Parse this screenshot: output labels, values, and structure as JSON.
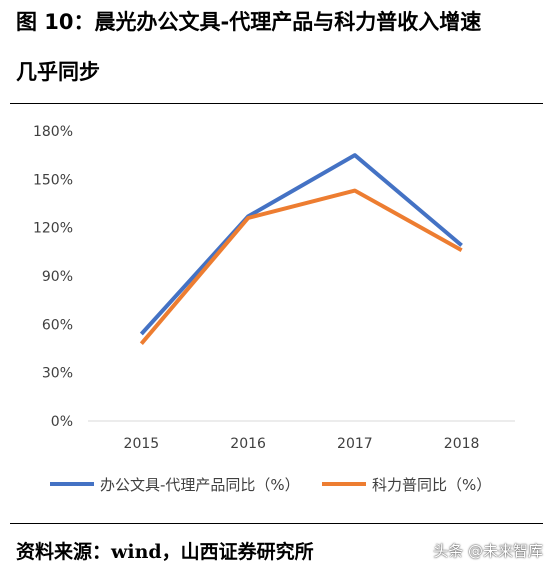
{
  "figure": {
    "title_line1": "图 10：晨光办公文具-代理产品与科力普收入增速",
    "title_line2": "几乎同步",
    "source": "资料来源：wind，山西证券研究所",
    "watermark": "头条 @未来智库"
  },
  "chart_data": {
    "type": "line",
    "title": "",
    "xlabel": "",
    "ylabel": "",
    "categories": [
      "2015",
      "2016",
      "2017",
      "2018"
    ],
    "y_ticks": [
      "0%",
      "30%",
      "60%",
      "90%",
      "120%",
      "150%",
      "180%"
    ],
    "y_tick_values": [
      0,
      30,
      60,
      90,
      120,
      150,
      180
    ],
    "ylim": [
      0,
      180
    ],
    "grid": false,
    "legend_position": "bottom",
    "series": [
      {
        "name": "办公文具-代理产品同比（%）",
        "color": "#4472C4",
        "values": [
          54,
          127,
          165,
          109
        ]
      },
      {
        "name": "科力普同比（%）",
        "color": "#ED7D31",
        "values": [
          48,
          126,
          143,
          106
        ]
      }
    ]
  }
}
